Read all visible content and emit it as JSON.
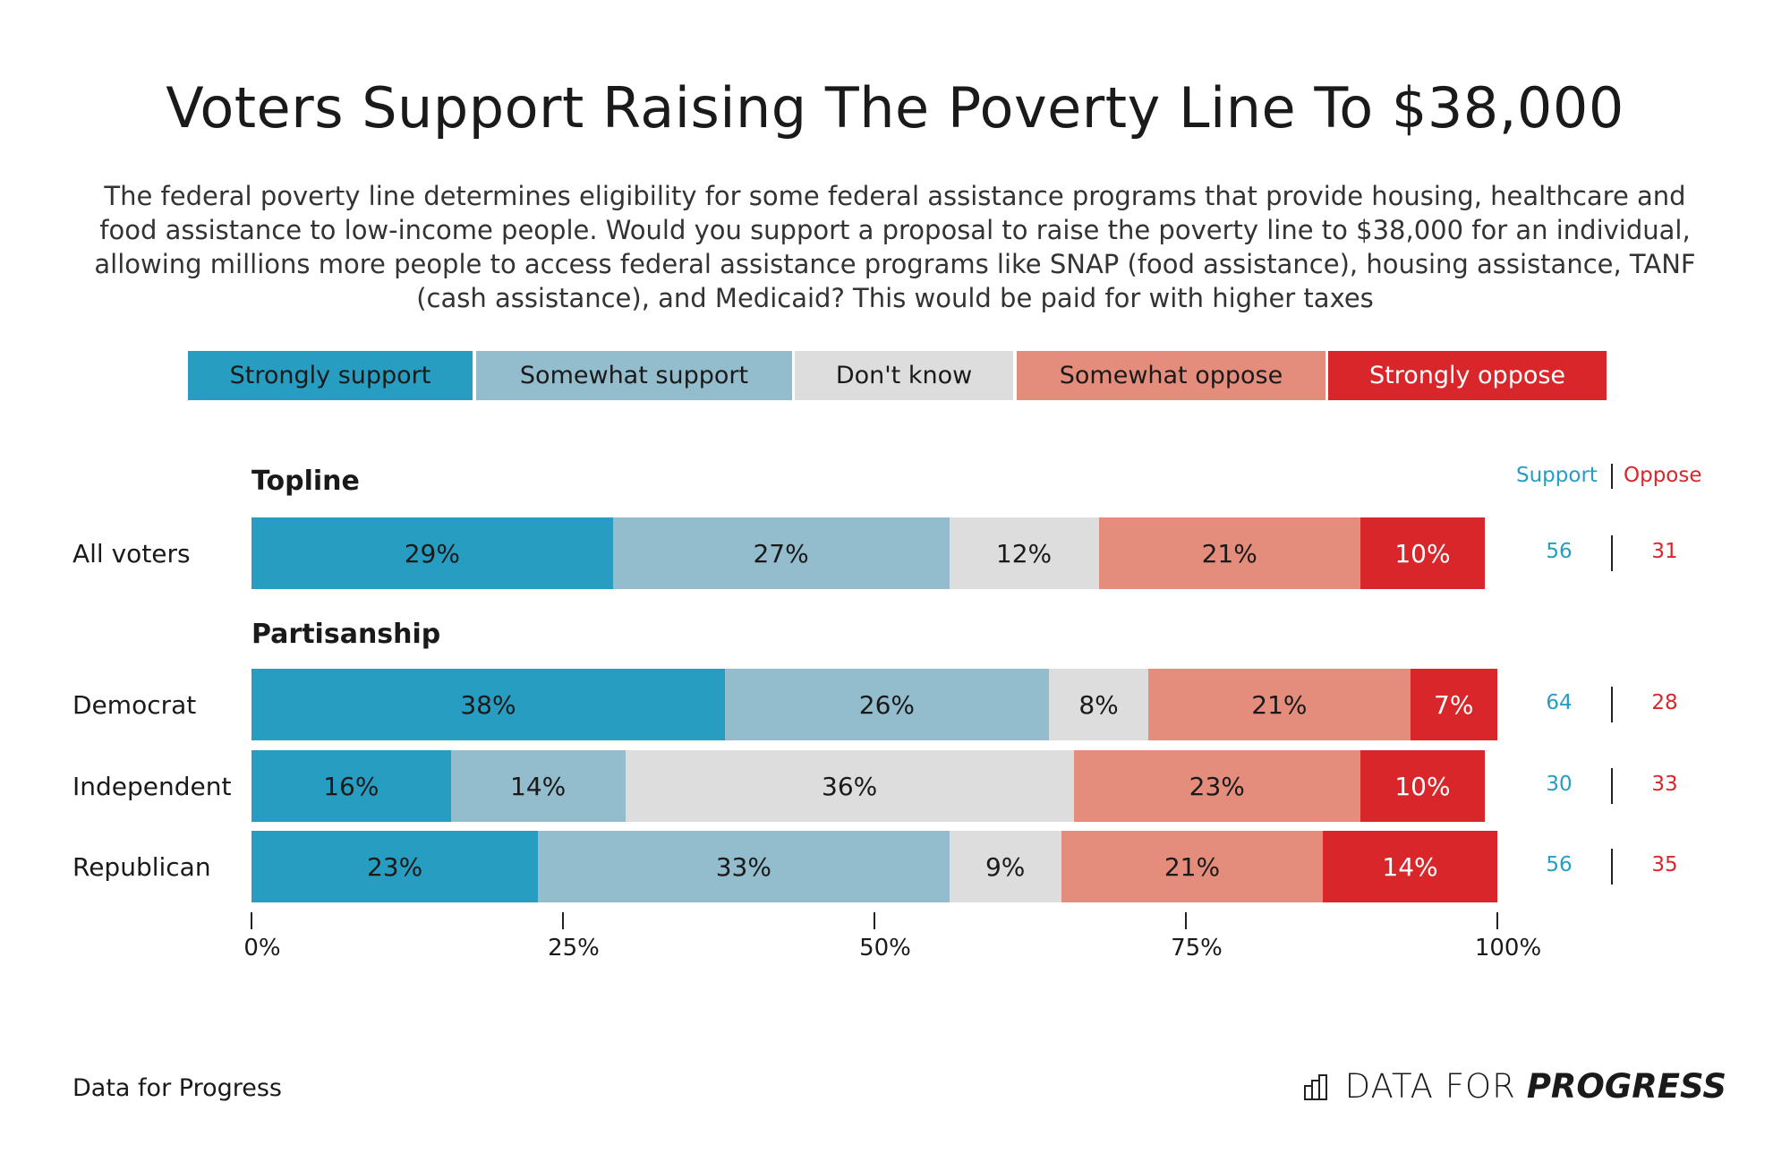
{
  "chart_data": {
    "type": "bar",
    "orientation": "horizontal",
    "stacked": true,
    "title": "Voters Support Raising The Poverty Line To $38,000",
    "subtitle": "The federal poverty line determines eligibility for some federal assistance programs that provide housing, healthcare and food assistance to low-income people. Would you support a proposal to raise the poverty line to $38,000 for an individual, allowing millions more people to access federal assistance programs like SNAP (food assistance), housing assistance, TANF (cash assistance), and Medicaid? This would be paid for with higher taxes",
    "legend_position": "top",
    "series": [
      {
        "name": "Strongly support",
        "color": "#279dc1"
      },
      {
        "name": "Somewhat support",
        "color": "#93bccd"
      },
      {
        "name": "Don't know",
        "color": "#dddddd"
      },
      {
        "name": "Somewhat oppose",
        "color": "#e48d7c"
      },
      {
        "name": "Strongly oppose",
        "color": "#d9262a"
      }
    ],
    "groups": [
      {
        "label": "Topline",
        "rows": [
          {
            "label": "All voters",
            "values": [
              29,
              27,
              12,
              21,
              10
            ],
            "support": "56",
            "oppose": "31"
          }
        ]
      },
      {
        "label": "Partisanship",
        "rows": [
          {
            "label": "Democrat",
            "values": [
              38,
              26,
              8,
              21,
              7
            ],
            "support": "64",
            "oppose": "28"
          },
          {
            "label": "Independent",
            "values": [
              16,
              14,
              36,
              23,
              10
            ],
            "support": "30",
            "oppose": "33"
          },
          {
            "label": "Republican",
            "values": [
              23,
              33,
              9,
              21,
              14
            ],
            "support": "56",
            "oppose": "35"
          }
        ]
      }
    ],
    "xlim": [
      0,
      100
    ],
    "x_ticks": [
      "0%",
      "25%",
      "50%",
      "75%",
      "100%"
    ],
    "net_headers": {
      "support": "Support",
      "oppose": "Oppose",
      "support_color": "#279dc1",
      "oppose_color": "#d9262a"
    }
  },
  "footer": {
    "source": "Data for Progress",
    "logo_text_light": "DATA FOR",
    "logo_text_bold": "PROGRESS"
  }
}
